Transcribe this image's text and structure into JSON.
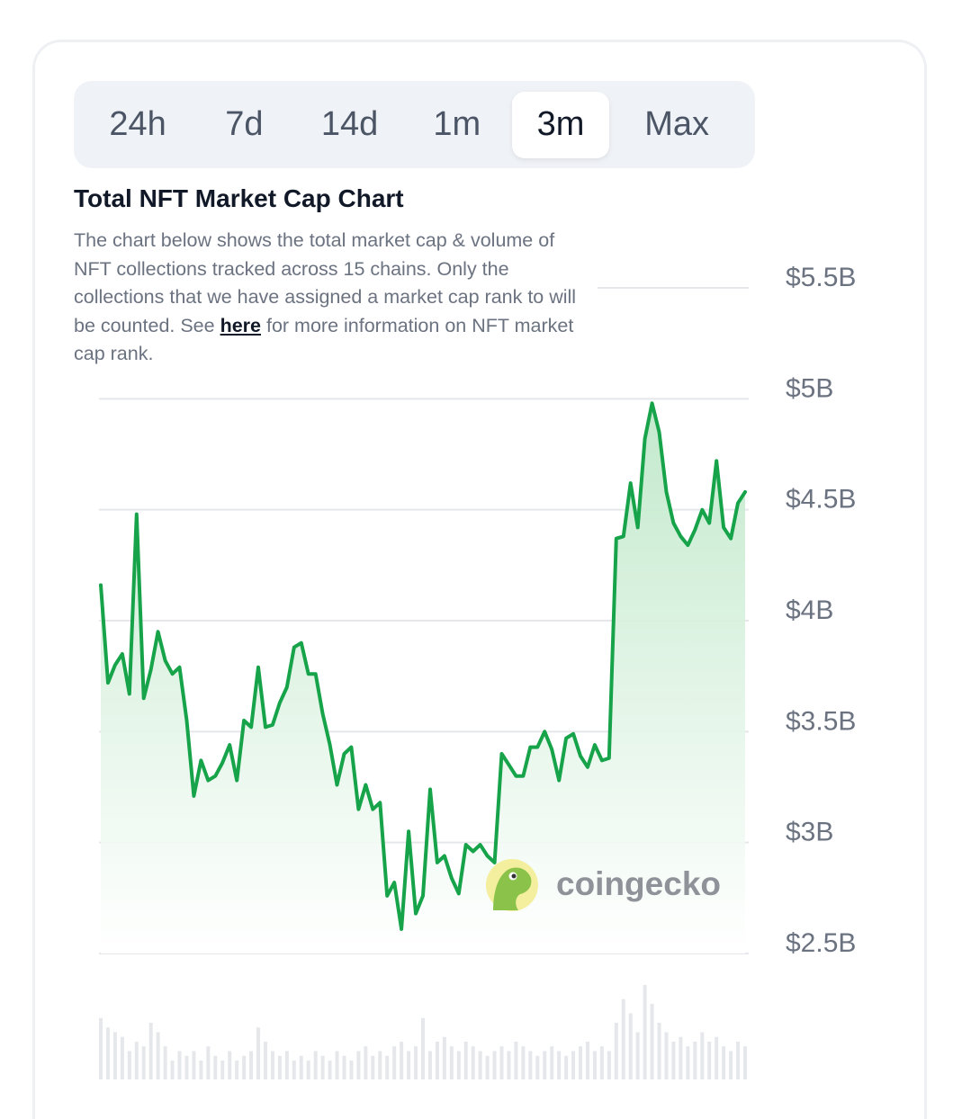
{
  "timeframe_tabs": [
    "24h",
    "7d",
    "14d",
    "1m",
    "3m",
    "Max"
  ],
  "active_tab": "3m",
  "title": "Total NFT Market Cap Chart",
  "description": {
    "before_link": "The chart below shows the total market cap & volume of NFT collections tracked across 15 chains. Only the collections that we have assigned a market cap rank to will be counted. See ",
    "link": "here",
    "after_link": " for more information on NFT market cap rank."
  },
  "watermark": "coingecko",
  "colors": {
    "line": "#16a34a",
    "area_top": "#c6ebd0",
    "grid": "#e5e7eb",
    "volume_bars": "#e5e7eb",
    "tab_bg": "#eff2f6"
  },
  "chart_data": {
    "type": "area",
    "y_axis_ticks": [
      {
        "value": 2.5,
        "label": "$2.5B"
      },
      {
        "value": 3,
        "label": "$3B"
      },
      {
        "value": 3.5,
        "label": "$3.5B"
      },
      {
        "value": 4,
        "label": "$4B"
      },
      {
        "value": 4.5,
        "label": "$4.5B"
      },
      {
        "value": 5,
        "label": "$5B"
      },
      {
        "value": 5.5,
        "label": "$5.5B"
      }
    ],
    "ylim": [
      2.5,
      5.5
    ],
    "y_axis_position": "right",
    "grid": true,
    "series": [
      {
        "values": [
          4.16,
          3.72,
          3.8,
          3.85,
          3.67,
          4.48,
          3.65,
          3.78,
          3.95,
          3.82,
          3.76,
          3.79,
          3.55,
          3.21,
          3.37,
          3.28,
          3.3,
          3.36,
          3.44,
          3.28,
          3.55,
          3.52,
          3.79,
          3.52,
          3.53,
          3.63,
          3.7,
          3.88,
          3.9,
          3.76,
          3.76,
          3.58,
          3.44,
          3.26,
          3.4,
          3.43,
          3.15,
          3.26,
          3.15,
          3.18,
          2.76,
          2.82,
          2.61,
          3.05,
          2.68,
          2.76,
          3.24,
          2.91,
          2.94,
          2.84,
          2.77,
          2.99,
          2.96,
          2.99,
          2.94,
          2.91,
          3.4,
          3.35,
          3.3,
          3.3,
          3.43,
          3.43,
          3.5,
          3.42,
          3.28,
          3.47,
          3.49,
          3.39,
          3.34,
          3.44,
          3.37,
          3.38,
          4.37,
          4.38,
          4.62,
          4.42,
          4.82,
          4.98,
          4.85,
          4.58,
          4.44,
          4.38,
          4.34,
          4.41,
          4.5,
          4.44,
          4.72,
          4.42,
          4.37,
          4.53,
          4.58
        ]
      }
    ],
    "volume": {
      "values": [
        0.65,
        0.55,
        0.5,
        0.45,
        0.3,
        0.4,
        0.35,
        0.6,
        0.5,
        0.35,
        0.2,
        0.3,
        0.25,
        0.3,
        0.2,
        0.35,
        0.25,
        0.2,
        0.3,
        0.2,
        0.25,
        0.3,
        0.55,
        0.4,
        0.3,
        0.25,
        0.3,
        0.2,
        0.25,
        0.2,
        0.3,
        0.25,
        0.2,
        0.3,
        0.25,
        0.2,
        0.3,
        0.35,
        0.25,
        0.3,
        0.25,
        0.35,
        0.4,
        0.3,
        0.35,
        0.65,
        0.3,
        0.4,
        0.45,
        0.35,
        0.3,
        0.4,
        0.35,
        0.3,
        0.25,
        0.3,
        0.35,
        0.3,
        0.4,
        0.35,
        0.3,
        0.25,
        0.3,
        0.35,
        0.3,
        0.25,
        0.3,
        0.35,
        0.4,
        0.3,
        0.35,
        0.3,
        0.6,
        0.85,
        0.7,
        0.5,
        1.0,
        0.8,
        0.6,
        0.5,
        0.4,
        0.45,
        0.35,
        0.4,
        0.5,
        0.4,
        0.45,
        0.35,
        0.3,
        0.4,
        0.35
      ]
    }
  }
}
